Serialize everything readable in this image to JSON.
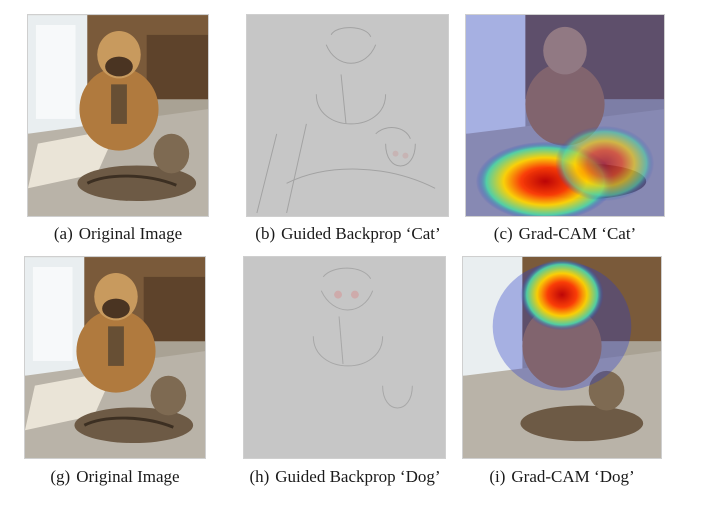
{
  "figure": {
    "row1": [
      {
        "tag": "(a)",
        "label": "Original Image"
      },
      {
        "tag": "(b)",
        "label": "Guided Backprop ‘Cat’"
      },
      {
        "tag": "(c)",
        "label": "Grad-CAM ‘Cat’"
      }
    ],
    "row2": [
      {
        "tag": "(g)",
        "label": "Original Image"
      },
      {
        "tag": "(h)",
        "label": "Guided Backprop ‘Dog’"
      },
      {
        "tag": "(i)",
        "label": "Grad-CAM ‘Dog’"
      }
    ]
  },
  "colors": {
    "floor": "#b9b3a8",
    "wall": "#7a5a3a",
    "window": "#e9eef0",
    "dog": "#b07a3e",
    "cat": "#6d5a45",
    "gb_gray": "#c6c6c6",
    "heat_hot": "#c00000",
    "heat_warm": "#ffd400",
    "heat_cool": "#2a3cc8"
  }
}
